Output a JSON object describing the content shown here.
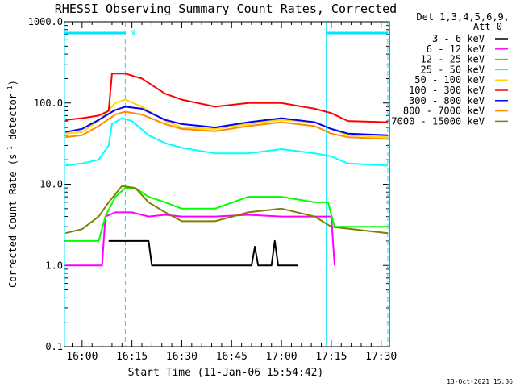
{
  "chart_data": {
    "type": "line",
    "title": "RHESSI Observing Summary Count Rates, Corrected",
    "xlabel": "Start Time (11-Jan-06 15:54:42)",
    "ylabel": "Corrected Count Rate (s⁻¹ detector⁻¹)",
    "ylabel_main": "Corrected Count Rate (s",
    "ylabel_sup1": "-1",
    "ylabel_mid": " detector",
    "ylabel_sup2": "-1",
    "ylabel_end": ")",
    "yscale": "log",
    "ylim": [
      0.1,
      1000
    ],
    "xlim": [
      "15:54:42",
      "17:32:30"
    ],
    "grid": false,
    "x_ticks": [
      "16:00",
      "16:15",
      "16:30",
      "16:45",
      "17:00",
      "17:15",
      "17:30"
    ],
    "y_ticks": [
      "0.1",
      "1.0",
      "10.0",
      "100.0",
      "1000.0"
    ],
    "legend_header": [
      "Det 1,3,4,5,6,9,",
      "Att 0"
    ],
    "legend_position": "right",
    "footer_timestamp": "13-Oct-2021 15:36",
    "night_marker": "N",
    "night_periods": [
      [
        "15:54:42",
        "16:13:00"
      ],
      [
        "17:13:30",
        "17:32:00"
      ]
    ],
    "event_lines": [
      {
        "time": "15:54:42",
        "style": "solid"
      },
      {
        "time": "16:13:00",
        "style": "dashed"
      },
      {
        "time": "17:13:30",
        "style": "solid"
      },
      {
        "time": "17:32:00",
        "style": "dashed"
      }
    ],
    "series": [
      {
        "name": "3 - 6 keV",
        "color": "#000000",
        "points": [
          [
            "16:08:00",
            2.0
          ],
          [
            "16:09:00",
            2.0
          ],
          [
            "16:11:00",
            2.0
          ],
          [
            "16:13:00",
            2.0
          ],
          [
            "16:15:00",
            2.0
          ],
          [
            "16:20:00",
            2.0
          ],
          [
            "16:21:00",
            1.0
          ],
          [
            "16:45:00",
            1.0
          ],
          [
            "16:51:00",
            1.0
          ],
          [
            "16:52:00",
            1.7
          ],
          [
            "16:53:00",
            1.0
          ],
          [
            "16:57:00",
            1.0
          ],
          [
            "16:58:00",
            2.0
          ],
          [
            "16:59:00",
            1.0
          ],
          [
            "17:05:00",
            1.0
          ]
        ]
      },
      {
        "name": "6 - 12 keV",
        "color": "#ff00ff",
        "points": [
          [
            "15:55:00",
            1.0
          ],
          [
            "16:01:00",
            1.0
          ],
          [
            "16:06:00",
            1.0
          ],
          [
            "16:07:00",
            4.0
          ],
          [
            "16:10:00",
            4.5
          ],
          [
            "16:15:00",
            4.5
          ],
          [
            "16:20:00",
            4.0
          ],
          [
            "16:25:00",
            4.2
          ],
          [
            "16:30:00",
            4.0
          ],
          [
            "16:40:00",
            4.0
          ],
          [
            "16:50:00",
            4.2
          ],
          [
            "17:00:00",
            4.0
          ],
          [
            "17:10:00",
            4.0
          ],
          [
            "17:15:00",
            4.0
          ],
          [
            "17:16:00",
            1.0
          ]
        ]
      },
      {
        "name": "12 - 25 keV",
        "color": "#00ff00",
        "points": [
          [
            "15:55:00",
            2.0
          ],
          [
            "16:00:00",
            2.0
          ],
          [
            "16:05:00",
            2.0
          ],
          [
            "16:07:00",
            4.0
          ],
          [
            "16:10:00",
            7.0
          ],
          [
            "16:13:00",
            9.0
          ],
          [
            "16:16:00",
            9.0
          ],
          [
            "16:20:00",
            7.0
          ],
          [
            "16:25:00",
            6.0
          ],
          [
            "16:30:00",
            5.0
          ],
          [
            "16:40:00",
            5.0
          ],
          [
            "16:50:00",
            7.0
          ],
          [
            "17:00:00",
            7.0
          ],
          [
            "17:10:00",
            6.0
          ],
          [
            "17:14:00",
            6.0
          ],
          [
            "17:16:00",
            3.0
          ],
          [
            "17:32:00",
            3.0
          ]
        ]
      },
      {
        "name": "25 - 50 keV",
        "color": "#00ffff",
        "points": [
          [
            "15:55:00",
            17.0
          ],
          [
            "16:00:00",
            18.0
          ],
          [
            "16:05:00",
            20.0
          ],
          [
            "16:08:00",
            30.0
          ],
          [
            "16:09:00",
            55.0
          ],
          [
            "16:12:00",
            65.0
          ],
          [
            "16:15:00",
            60.0
          ],
          [
            "16:20:00",
            40.0
          ],
          [
            "16:25:00",
            32.0
          ],
          [
            "16:30:00",
            28.0
          ],
          [
            "16:40:00",
            24.0
          ],
          [
            "16:50:00",
            24.0
          ],
          [
            "17:00:00",
            27.0
          ],
          [
            "17:10:00",
            24.0
          ],
          [
            "17:15:00",
            22.0
          ],
          [
            "17:20:00",
            18.0
          ],
          [
            "17:32:00",
            17.0
          ]
        ]
      },
      {
        "name": "50 - 100 keV",
        "color": "#ffd700",
        "points": [
          [
            "15:55:00",
            42.0
          ],
          [
            "16:00:00",
            44.0
          ],
          [
            "16:05:00",
            60.0
          ],
          [
            "16:10:00",
            100.0
          ],
          [
            "16:13:00",
            110.0
          ],
          [
            "16:18:00",
            90.0
          ],
          [
            "16:25:00",
            60.0
          ],
          [
            "16:30:00",
            50.0
          ],
          [
            "16:40:00",
            48.0
          ],
          [
            "16:50:00",
            55.0
          ],
          [
            "17:00:00",
            62.0
          ],
          [
            "17:10:00",
            58.0
          ],
          [
            "17:15:00",
            48.0
          ],
          [
            "17:20:00",
            40.0
          ],
          [
            "17:32:00",
            38.0
          ]
        ]
      },
      {
        "name": "100 - 300 keV",
        "color": "#ff0000",
        "points": [
          [
            "15:55:00",
            62.0
          ],
          [
            "16:00:00",
            65.0
          ],
          [
            "16:05:00",
            70.0
          ],
          [
            "16:08:00",
            80.0
          ],
          [
            "16:09:00",
            230.0
          ],
          [
            "16:13:00",
            230.0
          ],
          [
            "16:18:00",
            200.0
          ],
          [
            "16:25:00",
            130.0
          ],
          [
            "16:30:00",
            110.0
          ],
          [
            "16:40:00",
            90.0
          ],
          [
            "16:50:00",
            100.0
          ],
          [
            "17:00:00",
            100.0
          ],
          [
            "17:10:00",
            85.0
          ],
          [
            "17:15:00",
            75.0
          ],
          [
            "17:20:00",
            60.0
          ],
          [
            "17:32:00",
            58.0
          ]
        ]
      },
      {
        "name": "300 - 800 keV",
        "color": "#0000ff",
        "points": [
          [
            "15:55:00",
            44.0
          ],
          [
            "16:00:00",
            48.0
          ],
          [
            "16:05:00",
            62.0
          ],
          [
            "16:10:00",
            82.0
          ],
          [
            "16:13:00",
            90.0
          ],
          [
            "16:18:00",
            85.0
          ],
          [
            "16:25:00",
            62.0
          ],
          [
            "16:30:00",
            55.0
          ],
          [
            "16:40:00",
            50.0
          ],
          [
            "16:50:00",
            58.0
          ],
          [
            "17:00:00",
            65.0
          ],
          [
            "17:10:00",
            58.0
          ],
          [
            "17:15:00",
            48.0
          ],
          [
            "17:20:00",
            42.0
          ],
          [
            "17:32:00",
            40.0
          ]
        ]
      },
      {
        "name": "800 - 7000 keV",
        "color": "#ff8c00",
        "points": [
          [
            "15:55:00",
            38.0
          ],
          [
            "16:00:00",
            40.0
          ],
          [
            "16:05:00",
            52.0
          ],
          [
            "16:10:00",
            72.0
          ],
          [
            "16:13:00",
            78.0
          ],
          [
            "16:18:00",
            72.0
          ],
          [
            "16:25:00",
            55.0
          ],
          [
            "16:30:00",
            48.0
          ],
          [
            "16:40:00",
            45.0
          ],
          [
            "16:50:00",
            52.0
          ],
          [
            "17:00:00",
            58.0
          ],
          [
            "17:10:00",
            52.0
          ],
          [
            "17:15:00",
            42.0
          ],
          [
            "17:20:00",
            38.0
          ],
          [
            "17:32:00",
            36.0
          ]
        ]
      },
      {
        "name": "7000 - 15000 keV",
        "color": "#808000",
        "points": [
          [
            "15:55:00",
            2.5
          ],
          [
            "16:00:00",
            2.8
          ],
          [
            "16:05:00",
            4.0
          ],
          [
            "16:08:00",
            6.0
          ],
          [
            "16:12:00",
            9.5
          ],
          [
            "16:16:00",
            9.0
          ],
          [
            "16:20:00",
            6.0
          ],
          [
            "16:25:00",
            4.5
          ],
          [
            "16:30:00",
            3.5
          ],
          [
            "16:40:00",
            3.5
          ],
          [
            "16:50:00",
            4.5
          ],
          [
            "17:00:00",
            5.0
          ],
          [
            "17:10:00",
            4.0
          ],
          [
            "17:15:00",
            3.0
          ],
          [
            "17:32:00",
            2.5
          ]
        ]
      }
    ]
  }
}
